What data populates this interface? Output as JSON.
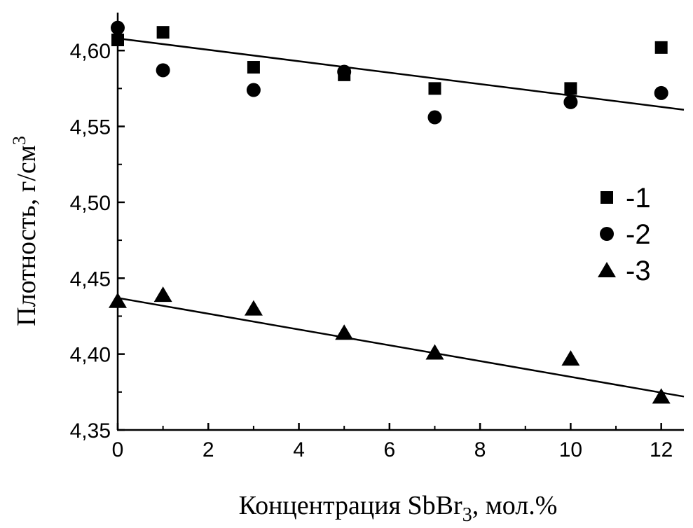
{
  "chart_data": {
    "type": "scatter",
    "xlabel_main": "Концентрация SbBr",
    "xlabel_sub": "3",
    "xlabel_rest": ", мол.%",
    "ylabel_main": "Плотность, г/см",
    "ylabel_sup": "3",
    "xlim": [
      0,
      12.5
    ],
    "ylim": [
      4.35,
      4.625
    ],
    "x_ticks": [
      0,
      2,
      4,
      6,
      8,
      10,
      12
    ],
    "x_tick_labels": [
      "0",
      "2",
      "4",
      "6",
      "8",
      "10",
      "12"
    ],
    "y_ticks": [
      4.35,
      4.4,
      4.45,
      4.5,
      4.55,
      4.6
    ],
    "y_tick_labels": [
      "4,35",
      "4,40",
      "4,45",
      "4,50",
      "4,55",
      "4,60"
    ],
    "series": [
      {
        "name": "-1",
        "marker": "square",
        "x": [
          0,
          1,
          3,
          5,
          7,
          10,
          12
        ],
        "y": [
          4.607,
          4.612,
          4.589,
          4.584,
          4.575,
          4.575,
          4.602
        ]
      },
      {
        "name": "-2",
        "marker": "circle",
        "x": [
          0,
          1,
          3,
          5,
          7,
          10,
          12
        ],
        "y": [
          4.615,
          4.587,
          4.574,
          4.586,
          4.556,
          4.566,
          4.572
        ]
      },
      {
        "name": "-3",
        "marker": "triangle",
        "x": [
          0,
          1,
          3,
          5,
          7,
          10,
          12
        ],
        "y": [
          4.435,
          4.439,
          4.43,
          4.414,
          4.401,
          4.397,
          4.372
        ]
      }
    ],
    "fit_lines": [
      {
        "x": [
          0,
          12.5
        ],
        "y": [
          4.608,
          4.561
        ]
      },
      {
        "x": [
          0,
          12.5
        ],
        "y": [
          4.437,
          4.372
        ]
      }
    ],
    "legend_position": "right",
    "grid": false
  }
}
